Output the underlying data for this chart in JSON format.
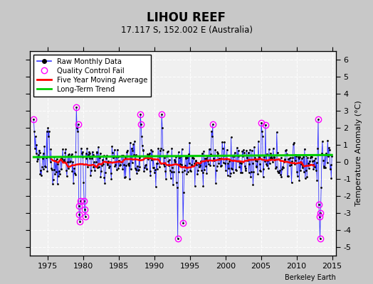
{
  "title": "LIHOU REEF",
  "subtitle": "17.117 S, 152.002 E (Australia)",
  "ylabel": "Temperature Anomaly (°C)",
  "credit": "Berkeley Earth",
  "xlim": [
    1972.5,
    2015.5
  ],
  "ylim": [
    -5.5,
    6.5
  ],
  "yticks": [
    -5,
    -4,
    -3,
    -2,
    -1,
    0,
    1,
    2,
    3,
    4,
    5,
    6
  ],
  "xticks": [
    1975,
    1980,
    1985,
    1990,
    1995,
    2000,
    2005,
    2010,
    2015
  ],
  "plot_bg": "#f0f0f0",
  "fig_bg": "#c8c8c8",
  "grid_color": "white",
  "trend_intercept": 0.28,
  "trend_slope": 0.003
}
